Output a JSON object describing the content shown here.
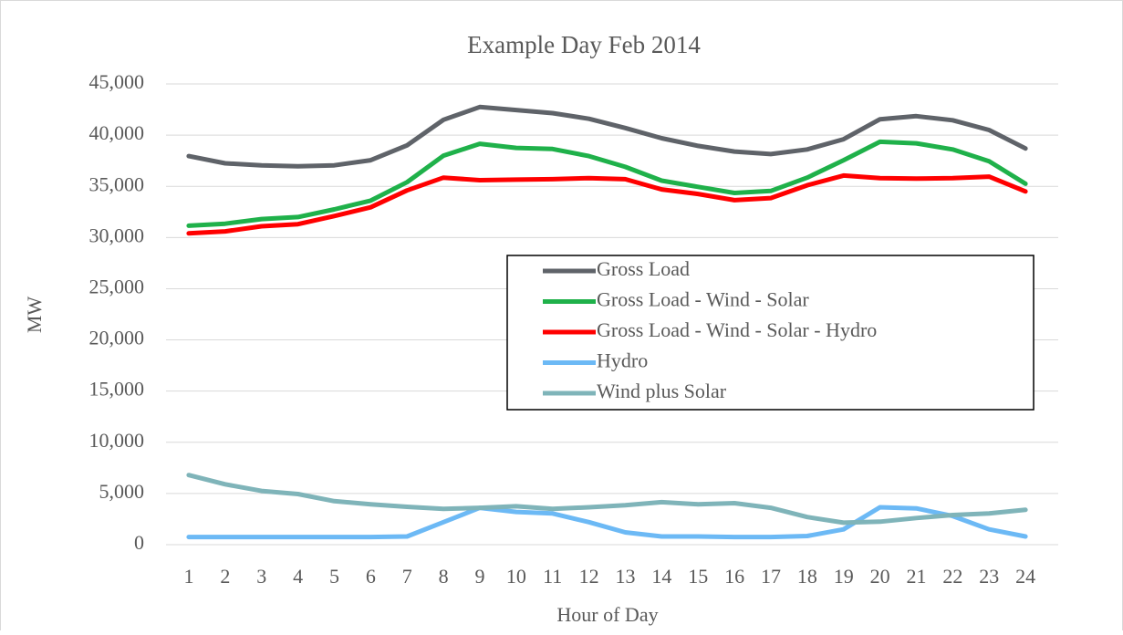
{
  "chart_data": {
    "type": "line",
    "title": "Example Day Feb 2014",
    "xlabel": "Hour of Day",
    "ylabel": "MW",
    "categories": [
      "1",
      "2",
      "3",
      "4",
      "5",
      "6",
      "7",
      "8",
      "9",
      "10",
      "11",
      "12",
      "13",
      "14",
      "15",
      "16",
      "17",
      "18",
      "19",
      "20",
      "21",
      "22",
      "23",
      "24"
    ],
    "series": [
      {
        "name": "Gross Load",
        "color": "#5f6369",
        "values": [
          37950,
          37250,
          37050,
          36950,
          37050,
          37550,
          39000,
          41500,
          42750,
          42450,
          42150,
          41600,
          40700,
          39700,
          38950,
          38400,
          38150,
          38600,
          39600,
          41550,
          41850,
          41450,
          40500,
          38700
        ]
      },
      {
        "name": "Gross Load - Wind - Solar",
        "color": "#1fb14a",
        "values": [
          31150,
          31350,
          31800,
          32000,
          32750,
          33600,
          35400,
          38000,
          39150,
          38750,
          38650,
          37950,
          36900,
          35550,
          34950,
          34350,
          34550,
          35850,
          37550,
          39350,
          39200,
          38600,
          37450,
          35250
        ]
      },
      {
        "name": "Gross Load - Wind - Solar - Hydro",
        "color": "#ff0000",
        "values": [
          30400,
          30600,
          31100,
          31300,
          32100,
          32950,
          34600,
          35850,
          35600,
          35650,
          35700,
          35800,
          35700,
          34700,
          34250,
          33650,
          33850,
          35100,
          36050,
          35800,
          35750,
          35800,
          35950,
          34500
        ]
      },
      {
        "name": "Hydro",
        "color": "#6cb9f5",
        "values": [
          750,
          750,
          750,
          750,
          750,
          750,
          800,
          2200,
          3600,
          3200,
          3050,
          2200,
          1200,
          800,
          800,
          750,
          750,
          850,
          1500,
          3650,
          3550,
          2800,
          1500,
          800
        ]
      },
      {
        "name": "Wind plus Solar",
        "color": "#7fb4b9",
        "values": [
          6800,
          5900,
          5250,
          4950,
          4250,
          3950,
          3700,
          3500,
          3600,
          3750,
          3500,
          3650,
          3850,
          4150,
          3950,
          4050,
          3600,
          2700,
          2150,
          2250,
          2600,
          2900,
          3050,
          3400
        ]
      }
    ],
    "ylim": [
      0,
      45000
    ],
    "yticks": [
      0,
      {
        "value": 5000,
        "label": "5,000"
      },
      {
        "value": 10000,
        "label": "10,000"
      },
      {
        "value": 15000,
        "label": "15,000"
      },
      {
        "value": 20000,
        "label": "20,000"
      },
      {
        "value": 25000,
        "label": "25,000"
      },
      {
        "value": 30000,
        "label": "30,000"
      },
      {
        "value": 35000,
        "label": "35,000"
      },
      {
        "value": 40000,
        "label": "40,000"
      },
      {
        "value": 45000,
        "label": "45,000"
      }
    ],
    "grid": true
  }
}
